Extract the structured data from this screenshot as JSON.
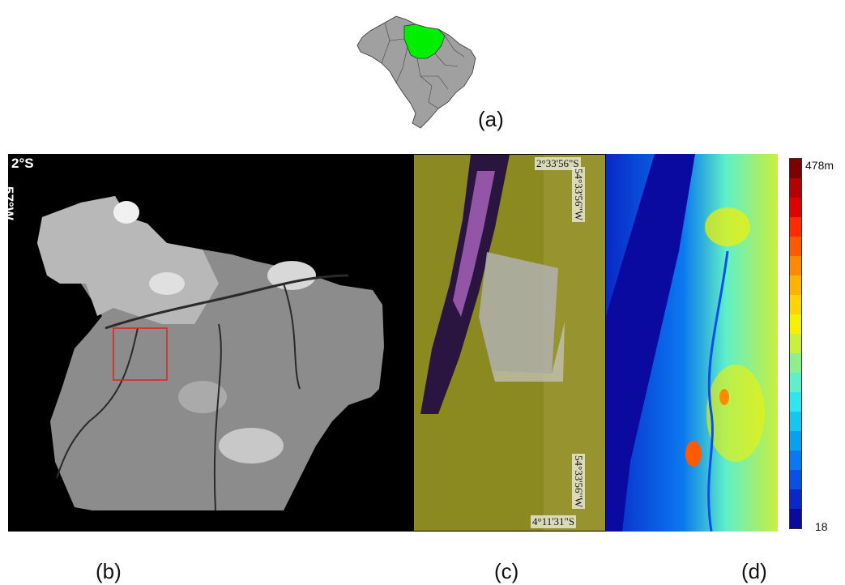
{
  "panels": {
    "a": {
      "label": "(a)"
    },
    "b": {
      "label": "(b)",
      "lat": "2°S",
      "lon": "57°W"
    },
    "c": {
      "label": "(c)",
      "top_lat": "2°33'56\"S",
      "bottom_lat": "4°11'31\"S",
      "lon_top": "54°33'56\"W",
      "lon_bottom": "54°33'56\"W"
    },
    "d": {
      "label": "(d)"
    }
  },
  "colorbar": {
    "max_label": "478m",
    "min_label": "18",
    "colors": [
      "#7f0000",
      "#b30000",
      "#e00000",
      "#ff2a00",
      "#ff5a00",
      "#ff8a00",
      "#ffb300",
      "#ffd400",
      "#f5f000",
      "#c8f03c",
      "#8ef08c",
      "#5ef0c8",
      "#2ee6f0",
      "#12c8f0",
      "#0aa0f0",
      "#0a78f0",
      "#0a50e6",
      "#0a28c8",
      "#0a0aa0"
    ]
  },
  "colors": {
    "state_highlight": "#00ee00",
    "brazil_fill": "#a0a0a0",
    "roi_box": "#e02020"
  }
}
